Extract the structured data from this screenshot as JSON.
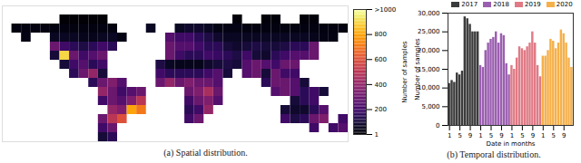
{
  "chart_data": [
    {
      "type": "heatmap",
      "title": "(a) Spatial distribution.",
      "xlim": [
        -180,
        180
      ],
      "ylim": [
        -60,
        90
      ],
      "tick_labels": false,
      "cells": [
        [
          -170,
          60,
          30
        ],
        [
          -160,
          60,
          30
        ],
        [
          -150,
          60,
          30
        ],
        [
          -140,
          60,
          30
        ],
        [
          -130,
          60,
          30
        ],
        [
          -120,
          60,
          30
        ],
        [
          -110,
          60,
          30
        ],
        [
          -100,
          60,
          30
        ],
        [
          -90,
          60,
          30
        ],
        [
          -80,
          60,
          30
        ],
        [
          -70,
          60,
          30
        ],
        [
          -120,
          70,
          10
        ],
        [
          -110,
          70,
          10
        ],
        [
          -100,
          70,
          10
        ],
        [
          -90,
          70,
          10
        ],
        [
          -80,
          70,
          10
        ],
        [
          -160,
          50,
          40
        ],
        [
          -130,
          50,
          60
        ],
        [
          -120,
          50,
          60
        ],
        [
          -110,
          50,
          60
        ],
        [
          -100,
          50,
          50
        ],
        [
          -90,
          50,
          50
        ],
        [
          -80,
          50,
          60
        ],
        [
          -70,
          50,
          60
        ],
        [
          -60,
          50,
          40
        ],
        [
          -130,
          40,
          300
        ],
        [
          -120,
          40,
          200
        ],
        [
          -110,
          40,
          150
        ],
        [
          -100,
          40,
          120
        ],
        [
          -90,
          40,
          150
        ],
        [
          -80,
          40,
          200
        ],
        [
          -70,
          40,
          150
        ],
        [
          -130,
          30,
          100
        ],
        [
          -120,
          30,
          900
        ],
        [
          -110,
          30,
          300
        ],
        [
          -100,
          30,
          200
        ],
        [
          -90,
          30,
          250
        ],
        [
          -80,
          30,
          300
        ],
        [
          -120,
          20,
          100
        ],
        [
          -110,
          20,
          200
        ],
        [
          -100,
          20,
          250
        ],
        [
          -90,
          20,
          150
        ],
        [
          -80,
          20,
          200
        ],
        [
          -110,
          10,
          150
        ],
        [
          -100,
          10,
          300
        ],
        [
          -90,
          10,
          400
        ],
        [
          -80,
          10,
          100
        ],
        [
          -90,
          0,
          150
        ],
        [
          -80,
          0,
          300
        ],
        [
          -70,
          0,
          350
        ],
        [
          -60,
          0,
          250
        ],
        [
          -80,
          -10,
          400
        ],
        [
          -70,
          -10,
          300
        ],
        [
          -60,
          -10,
          200
        ],
        [
          -50,
          -10,
          250
        ],
        [
          -40,
          -10,
          300
        ],
        [
          -80,
          -20,
          200
        ],
        [
          -70,
          -20,
          300
        ],
        [
          -60,
          -20,
          250
        ],
        [
          -50,
          -20,
          350
        ],
        [
          -40,
          -20,
          500
        ],
        [
          -70,
          -30,
          400
        ],
        [
          -60,
          -30,
          350
        ],
        [
          -50,
          -30,
          800
        ],
        [
          -40,
          -30,
          700
        ],
        [
          -80,
          -40,
          300
        ],
        [
          -70,
          -40,
          500
        ],
        [
          -60,
          -40,
          600
        ],
        [
          -80,
          -50,
          200
        ],
        [
          -70,
          -50,
          300
        ],
        [
          -80,
          -60,
          100
        ],
        [
          -70,
          -60,
          150
        ],
        [
          -30,
          60,
          60
        ],
        [
          0,
          60,
          60
        ],
        [
          10,
          60,
          80
        ],
        [
          20,
          60,
          80
        ],
        [
          30,
          60,
          60
        ],
        [
          40,
          60,
          40
        ],
        [
          50,
          60,
          40
        ],
        [
          60,
          60,
          40
        ],
        [
          70,
          60,
          30
        ],
        [
          80,
          60,
          30
        ],
        [
          90,
          60,
          30
        ],
        [
          100,
          60,
          30
        ],
        [
          110,
          60,
          30
        ],
        [
          120,
          60,
          30
        ],
        [
          130,
          60,
          30
        ],
        [
          140,
          60,
          30
        ],
        [
          150,
          60,
          30
        ],
        [
          160,
          60,
          30
        ],
        [
          170,
          60,
          30
        ],
        [
          60,
          70,
          20
        ],
        [
          90,
          70,
          20
        ],
        [
          100,
          70,
          20
        ],
        [
          130,
          70,
          20
        ],
        [
          140,
          70,
          20
        ],
        [
          -10,
          50,
          250
        ],
        [
          0,
          50,
          200
        ],
        [
          10,
          50,
          200
        ],
        [
          20,
          50,
          150
        ],
        [
          30,
          50,
          120
        ],
        [
          40,
          50,
          80
        ],
        [
          50,
          50,
          60
        ],
        [
          60,
          50,
          60
        ],
        [
          70,
          50,
          60
        ],
        [
          80,
          50,
          60
        ],
        [
          90,
          50,
          60
        ],
        [
          100,
          50,
          60
        ],
        [
          110,
          50,
          60
        ],
        [
          120,
          50,
          60
        ],
        [
          130,
          50,
          60
        ],
        [
          140,
          50,
          50
        ],
        [
          150,
          50,
          40
        ],
        [
          160,
          50,
          40
        ],
        [
          -10,
          40,
          300
        ],
        [
          0,
          40,
          250
        ],
        [
          10,
          40,
          250
        ],
        [
          20,
          40,
          200
        ],
        [
          30,
          40,
          150
        ],
        [
          40,
          40,
          150
        ],
        [
          50,
          40,
          100
        ],
        [
          60,
          40,
          80
        ],
        [
          70,
          40,
          100
        ],
        [
          80,
          40,
          120
        ],
        [
          90,
          40,
          100
        ],
        [
          100,
          40,
          100
        ],
        [
          110,
          40,
          120
        ],
        [
          120,
          40,
          150
        ],
        [
          130,
          40,
          150
        ],
        [
          140,
          40,
          300
        ],
        [
          -10,
          30,
          300
        ],
        [
          0,
          30,
          200
        ],
        [
          10,
          30,
          150
        ],
        [
          20,
          30,
          150
        ],
        [
          30,
          30,
          200
        ],
        [
          40,
          30,
          180
        ],
        [
          50,
          30,
          150
        ],
        [
          60,
          30,
          120
        ],
        [
          70,
          30,
          200
        ],
        [
          80,
          30,
          100
        ],
        [
          90,
          30,
          80
        ],
        [
          100,
          30,
          150
        ],
        [
          110,
          30,
          200
        ],
        [
          120,
          30,
          250
        ],
        [
          130,
          30,
          250
        ],
        [
          140,
          30,
          300
        ],
        [
          -20,
          20,
          120
        ],
        [
          -10,
          20,
          60
        ],
        [
          0,
          20,
          50
        ],
        [
          10,
          20,
          50
        ],
        [
          20,
          20,
          50
        ],
        [
          30,
          20,
          80
        ],
        [
          40,
          20,
          100
        ],
        [
          50,
          20,
          120
        ],
        [
          60,
          20,
          100
        ],
        [
          70,
          20,
          250
        ],
        [
          80,
          20,
          300
        ],
        [
          90,
          20,
          250
        ],
        [
          100,
          20,
          200
        ],
        [
          110,
          20,
          300
        ],
        [
          120,
          20,
          300
        ],
        [
          -20,
          10,
          200
        ],
        [
          -10,
          10,
          150
        ],
        [
          0,
          10,
          150
        ],
        [
          10,
          10,
          150
        ],
        [
          20,
          10,
          150
        ],
        [
          30,
          10,
          200
        ],
        [
          40,
          10,
          250
        ],
        [
          50,
          10,
          100
        ],
        [
          70,
          10,
          250
        ],
        [
          80,
          10,
          300
        ],
        [
          90,
          10,
          100
        ],
        [
          100,
          10,
          300
        ],
        [
          110,
          10,
          200
        ],
        [
          120,
          10,
          200
        ],
        [
          -20,
          0,
          300
        ],
        [
          -10,
          0,
          400
        ],
        [
          0,
          0,
          300
        ],
        [
          10,
          0,
          350
        ],
        [
          20,
          0,
          300
        ],
        [
          30,
          0,
          300
        ],
        [
          40,
          0,
          250
        ],
        [
          90,
          0,
          150
        ],
        [
          100,
          0,
          300
        ],
        [
          110,
          0,
          300
        ],
        [
          120,
          0,
          250
        ],
        [
          130,
          0,
          100
        ],
        [
          10,
          -10,
          300
        ],
        [
          20,
          -10,
          350
        ],
        [
          30,
          -10,
          450
        ],
        [
          40,
          -10,
          300
        ],
        [
          100,
          -10,
          250
        ],
        [
          110,
          -10,
          300
        ],
        [
          120,
          -10,
          250
        ],
        [
          130,
          -10,
          150
        ],
        [
          140,
          -10,
          200
        ],
        [
          150,
          -10,
          100
        ],
        [
          10,
          -20,
          200
        ],
        [
          20,
          -20,
          300
        ],
        [
          30,
          -20,
          350
        ],
        [
          40,
          -20,
          250
        ],
        [
          120,
          -20,
          100
        ],
        [
          130,
          -20,
          150
        ],
        [
          140,
          -20,
          200
        ],
        [
          10,
          -30,
          150
        ],
        [
          20,
          -30,
          200
        ],
        [
          30,
          -30,
          400
        ],
        [
          110,
          -30,
          100
        ],
        [
          120,
          -30,
          80
        ],
        [
          130,
          -30,
          80
        ],
        [
          140,
          -30,
          150
        ],
        [
          150,
          -30,
          250
        ],
        [
          10,
          -40,
          200
        ],
        [
          20,
          -40,
          300
        ],
        [
          110,
          -40,
          200
        ],
        [
          120,
          -40,
          120
        ],
        [
          130,
          -40,
          150
        ],
        [
          140,
          -40,
          300
        ],
        [
          150,
          -40,
          350
        ],
        [
          170,
          -40,
          200
        ],
        [
          140,
          -50,
          200
        ],
        [
          160,
          -50,
          200
        ],
        [
          170,
          -50,
          250
        ]
      ],
      "colorbar": {
        "label": "Number of samples",
        "range": [
          1,
          1000
        ],
        "ticks": [
          1,
          200,
          400,
          600,
          800,
          {
            "value": 1000,
            "label": ">1000"
          }
        ]
      }
    },
    {
      "type": "bar",
      "title": "(b) Temporal distribution.",
      "x_label": "Date in months",
      "y_label": "Number of samples",
      "categories": [
        "1",
        null,
        null,
        null,
        "5",
        null,
        null,
        null,
        "9",
        null,
        null,
        null,
        "1",
        null,
        null,
        null,
        "5",
        null,
        null,
        null,
        "9",
        null,
        null,
        null,
        "1",
        null,
        null,
        null,
        "5",
        null,
        null,
        null,
        "9",
        null,
        null,
        null,
        "1",
        null,
        null,
        null,
        "5",
        null,
        null,
        null,
        "9",
        null,
        null,
        null
      ],
      "series": [
        {
          "name": "2017",
          "color": "#3b3b3b",
          "values": [
            11200,
            12000,
            11500,
            14000,
            13500,
            14500,
            29000,
            28500,
            27000,
            25000,
            25000,
            25000,
            null,
            null,
            null,
            null,
            null,
            null,
            null,
            null,
            null,
            null,
            null,
            null,
            null,
            null,
            null,
            null,
            null,
            null,
            null,
            null,
            null,
            null,
            null,
            null,
            null,
            null,
            null,
            null,
            null,
            null,
            null,
            null,
            null,
            null,
            null,
            null
          ]
        },
        {
          "name": "2018",
          "color": "#9b5fb0",
          "values": [
            null,
            null,
            null,
            null,
            null,
            null,
            null,
            null,
            null,
            null,
            null,
            null,
            16000,
            15500,
            20000,
            22000,
            23000,
            23500,
            25000,
            22000,
            24500,
            24000,
            16500,
            13500,
            null,
            null,
            null,
            null,
            null,
            null,
            null,
            null,
            null,
            null,
            null,
            null,
            null,
            null,
            null,
            null,
            null,
            null,
            null,
            null,
            null,
            null,
            null,
            null
          ]
        },
        {
          "name": "2019",
          "color": "#e07a85",
          "values": [
            null,
            null,
            null,
            null,
            null,
            null,
            null,
            null,
            null,
            null,
            null,
            null,
            null,
            null,
            null,
            null,
            null,
            null,
            null,
            null,
            null,
            null,
            null,
            null,
            16000,
            15000,
            18000,
            21000,
            20500,
            20000,
            21000,
            22000,
            25000,
            22000,
            16000,
            13000,
            null,
            null,
            null,
            null,
            null,
            null,
            null,
            null,
            null,
            null,
            null,
            null
          ]
        },
        {
          "name": "2020",
          "color": "#f5b04a",
          "values": [
            null,
            null,
            null,
            null,
            null,
            null,
            null,
            null,
            null,
            null,
            null,
            null,
            null,
            null,
            null,
            null,
            null,
            null,
            null,
            null,
            null,
            null,
            null,
            null,
            null,
            null,
            null,
            null,
            null,
            null,
            null,
            null,
            null,
            null,
            null,
            null,
            18500,
            18500,
            20000,
            23000,
            22500,
            20500,
            22000,
            25500,
            24500,
            22000,
            18000,
            15500
          ]
        }
      ],
      "ylim": [
        0,
        30000
      ],
      "yticks": [
        0,
        5000,
        10000,
        15000,
        20000,
        25000,
        30000
      ],
      "legend": "top"
    }
  ]
}
